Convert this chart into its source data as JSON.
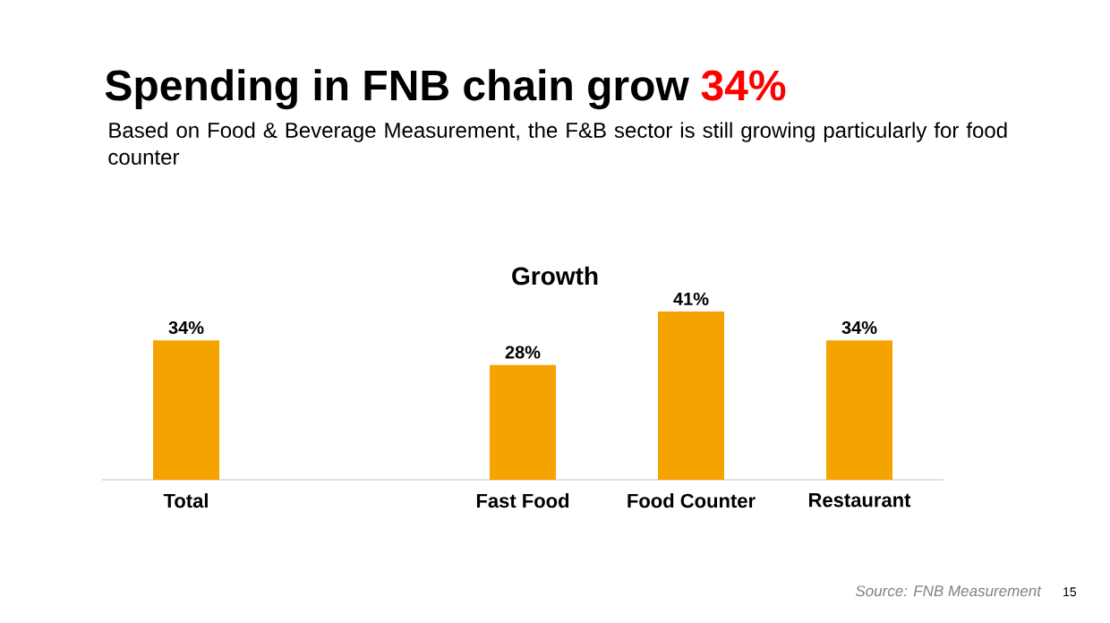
{
  "chart_data": {
    "type": "bar",
    "title": "Spending in FNB chain grow",
    "subtitle": "Based on Food & Beverage Measurement, the F&B sector is still growing particularly for food counter",
    "categories": [
      "Total",
      null,
      "Fast Food",
      "Food Counter",
      "Restaurant"
    ],
    "values": [
      34,
      null,
      28,
      41,
      34
    ],
    "value_labels": [
      "34%",
      null,
      "28%",
      "41%",
      "34%"
    ],
    "color": "#f5a300",
    "annotations": [
      "34%",
      "Growth",
      "Source: FNB Measurement",
      "15"
    ]
  }
}
